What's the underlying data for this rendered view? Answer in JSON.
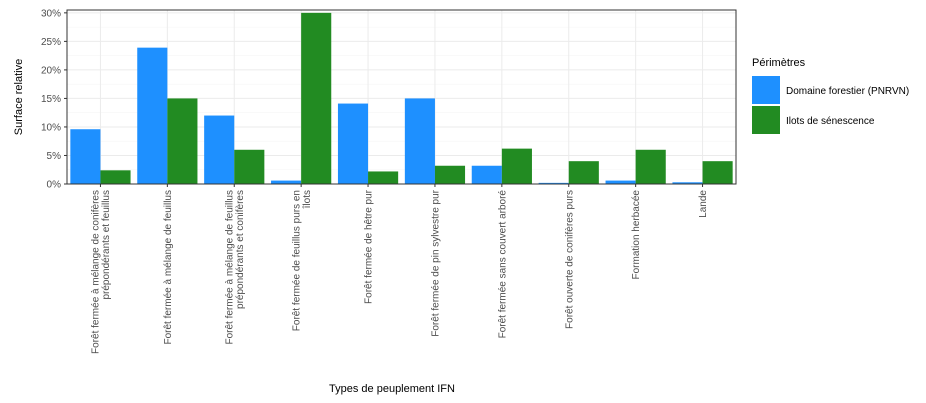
{
  "chart_data": {
    "type": "bar",
    "xlabel": "Types de peuplement IFN",
    "ylabel": "Surface relative",
    "ylim": [
      0,
      30.5
    ],
    "yticks": [
      0,
      5,
      10,
      15,
      20,
      25,
      30
    ],
    "ytick_labels": [
      "0%",
      "5%",
      "10%",
      "15%",
      "20%",
      "25%",
      "30%"
    ],
    "grid": true,
    "legend_position": "right",
    "legend_title": "Périmètres",
    "categories": [
      [
        "Forêt fermée à mélange de conifères",
        "prépondérants et feuillus"
      ],
      [
        "Forêt fermée à mélange de feuillus"
      ],
      [
        "Forêt fermée à mélange de feuillus",
        "prépondérants et conifères"
      ],
      [
        "Forêt fermée de feuillus purs en",
        "îlots"
      ],
      [
        "Forêt fermée de hêtre pur"
      ],
      [
        "Forêt fermée de pin sylvestre pur"
      ],
      [
        "Forêt fermée sans couvert arboré"
      ],
      [
        "Forêt ouverte de conifères purs"
      ],
      [
        "Formation herbacée"
      ],
      [
        "Lande"
      ]
    ],
    "series": [
      {
        "name": "Domaine forestier (PNRVN)",
        "color": "#1e90ff",
        "values": [
          9.6,
          23.9,
          12.0,
          0.6,
          14.1,
          15.0,
          3.2,
          0.2,
          0.6,
          0.3
        ]
      },
      {
        "name": "Ilots de sénescence",
        "color": "#228b22",
        "values": [
          2.4,
          15.0,
          6.0,
          30.0,
          2.2,
          3.2,
          6.2,
          4.0,
          6.0,
          4.0
        ]
      }
    ]
  }
}
